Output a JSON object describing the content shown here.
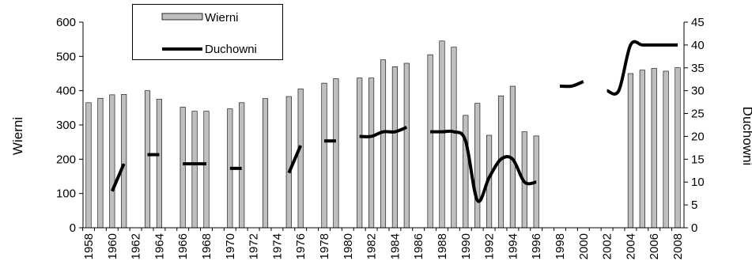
{
  "chart_data": {
    "type": "bar+line",
    "title": "",
    "xlabel": "",
    "y_left_label": "Wierni",
    "y_right_label": "Duchowni",
    "y_left_lim": [
      0,
      600
    ],
    "y_right_lim": [
      0,
      45
    ],
    "y_left_ticks": [
      "0",
      "100",
      "200",
      "300",
      "400",
      "500",
      "600"
    ],
    "y_right_ticks": [
      "0",
      "5",
      "10",
      "15",
      "20",
      "25",
      "30",
      "35",
      "40",
      "45"
    ],
    "x_tick_labels": [
      "1958",
      "1960",
      "1962",
      "1964",
      "1966",
      "1968",
      "1970",
      "1972",
      "1974",
      "1976",
      "1978",
      "1980",
      "1982",
      "1984",
      "1986",
      "1988",
      "1990",
      "1992",
      "1994",
      "1996",
      "1998",
      "2000",
      "2002",
      "2004",
      "2006",
      "2008"
    ],
    "years": [
      1958,
      1959,
      1960,
      1961,
      1962,
      1963,
      1964,
      1965,
      1966,
      1967,
      1968,
      1969,
      1970,
      1971,
      1972,
      1973,
      1974,
      1975,
      1976,
      1977,
      1978,
      1979,
      1980,
      1981,
      1982,
      1983,
      1984,
      1985,
      1986,
      1987,
      1988,
      1989,
      1990,
      1991,
      1992,
      1993,
      1994,
      1995,
      1996,
      1997,
      1998,
      1999,
      2000,
      2001,
      2002,
      2003,
      2004,
      2005,
      2006,
      2007,
      2008
    ],
    "grid": false,
    "legend_placement": "top-left",
    "series": [
      {
        "name": "Wierni",
        "kind": "bar",
        "axis": "left",
        "color": "#bfbfbf",
        "values": [
          365,
          378,
          388,
          389,
          null,
          400,
          375,
          null,
          352,
          340,
          340,
          null,
          347,
          365,
          null,
          377,
          null,
          383,
          405,
          null,
          422,
          435,
          null,
          437,
          437,
          490,
          470,
          480,
          null,
          505,
          545,
          527,
          328,
          363,
          270,
          385,
          413,
          280,
          268,
          null,
          null,
          null,
          null,
          null,
          null,
          null,
          450,
          460,
          465,
          457,
          467
        ]
      },
      {
        "name": "Duchowni",
        "kind": "line",
        "axis": "right",
        "color": "#000000",
        "values": [
          null,
          null,
          8,
          14,
          null,
          16,
          16,
          null,
          14,
          14,
          14,
          null,
          13,
          13,
          null,
          12,
          null,
          12,
          18,
          null,
          19,
          19,
          null,
          20,
          20,
          21,
          21,
          22,
          null,
          21,
          21,
          21,
          19,
          6,
          11,
          15,
          15,
          10,
          10,
          null,
          31,
          31,
          32,
          null,
          30,
          30,
          40,
          40,
          40,
          40,
          40
        ]
      }
    ]
  }
}
